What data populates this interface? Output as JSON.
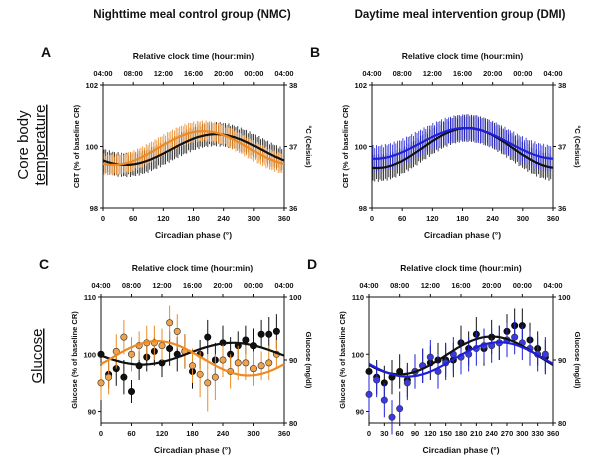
{
  "headers": {
    "left": "Nighttime meal control group (NMC)",
    "right": "Daytime meal intervention group (DMI)"
  },
  "row_labels": {
    "cbt_line1": "Core body",
    "cbt_line2": "temperature",
    "glucose": "Glucose"
  },
  "colors": {
    "nmc": "#ee8a22",
    "dmi": "#1f1fd8",
    "control": "#111111"
  },
  "chart_data": [
    {
      "id": "A",
      "type": "line",
      "letter": "A",
      "top_axis_label": "Relative clock time (hour:min)",
      "top_ticks": [
        "04:00",
        "08:00",
        "12:00",
        "16:00",
        "20:00",
        "00:00",
        "04:00"
      ],
      "xlabel": "Circadian phase (°)",
      "x_ticks": [
        0,
        60,
        120,
        180,
        240,
        300,
        360
      ],
      "xlim": [
        0,
        360
      ],
      "ylabel": "CBT (% of baseline CR)",
      "y_ticks": [
        98,
        100,
        102
      ],
      "ylim": [
        98,
        102
      ],
      "y2label": "°C (Celsius)",
      "y2_ticks": [
        36,
        37,
        38
      ],
      "y2lim": [
        36,
        38
      ],
      "fits": [
        {
          "name": "control",
          "color": "#111111",
          "mesor": 99.9,
          "amplitude": 0.5,
          "peak_deg": 225
        },
        {
          "name": "NMC",
          "color": "#ee8a22",
          "mesor": 99.95,
          "amplitude": 0.55,
          "peak_deg": 200
        }
      ],
      "bands": [
        {
          "color": "#111111",
          "mesor": 99.9,
          "amplitude": 0.5,
          "peak_deg": 225,
          "err": 0.4
        },
        {
          "color": "#ee8a22",
          "mesor": 99.95,
          "amplitude": 0.55,
          "peak_deg": 200,
          "err": 0.35
        }
      ]
    },
    {
      "id": "B",
      "type": "line",
      "letter": "B",
      "top_axis_label": "Relative clock time (hour:min)",
      "top_ticks": [
        "04:00",
        "08:00",
        "12:00",
        "16:00",
        "20:00",
        "00:00",
        "04:00"
      ],
      "xlabel": "Circadian phase (°)",
      "x_ticks": [
        0,
        60,
        120,
        180,
        240,
        300,
        360
      ],
      "xlim": [
        0,
        360
      ],
      "ylabel": "CBT (% of baseline CR)",
      "y_ticks": [
        98,
        100,
        102
      ],
      "ylim": [
        98,
        102
      ],
      "y2label": "°C (Celsius)",
      "y2_ticks": [
        36,
        37,
        38
      ],
      "y2lim": [
        36,
        38
      ],
      "fits": [
        {
          "name": "control",
          "color": "#111111",
          "mesor": 99.95,
          "amplitude": 0.65,
          "peak_deg": 190
        },
        {
          "name": "DMI",
          "color": "#1f1fd8",
          "mesor": 100.1,
          "amplitude": 0.5,
          "peak_deg": 185
        }
      ],
      "bands": [
        {
          "color": "#111111",
          "mesor": 99.95,
          "amplitude": 0.65,
          "peak_deg": 190,
          "err": 0.45
        },
        {
          "color": "#1f1fd8",
          "mesor": 100.1,
          "amplitude": 0.5,
          "peak_deg": 185,
          "err": 0.45
        }
      ]
    },
    {
      "id": "C",
      "type": "scatter",
      "letter": "C",
      "top_axis_label": "Relative clock time (hour:min)",
      "top_ticks": [
        "04:00",
        "08:00",
        "12:00",
        "16:00",
        "20:00",
        "00:00",
        "04:00"
      ],
      "xlabel": "Circadian phase (°)",
      "x_ticks": [
        0,
        60,
        120,
        180,
        240,
        300,
        360
      ],
      "xlim": [
        0,
        360
      ],
      "ylabel": "Glucose (% of baseline CR)",
      "y_ticks": [
        90,
        100,
        110
      ],
      "ylim": [
        88,
        110
      ],
      "y2label": "Glucose (mg/dl)",
      "y2_ticks": [
        80,
        90,
        100
      ],
      "y2lim": [
        80,
        100
      ],
      "fits": [
        {
          "name": "control",
          "color": "#111111",
          "mesor": 100.1,
          "amplitude": 1.9,
          "peak_deg": 260
        },
        {
          "name": "NMC",
          "color": "#ee8a22",
          "mesor": 99.3,
          "amplitude": 3.0,
          "peak_deg": 110
        }
      ],
      "series": [
        {
          "name": "control",
          "color": "#111111",
          "filled": "#111111",
          "x": [
            0,
            15,
            30,
            45,
            60,
            75,
            90,
            105,
            120,
            135,
            150,
            165,
            180,
            195,
            210,
            225,
            240,
            255,
            270,
            285,
            300,
            315,
            330,
            345
          ],
          "y": [
            100,
            96.5,
            97.5,
            96,
            93.5,
            98,
            99.5,
            100.5,
            98.5,
            101,
            100,
            100.5,
            97,
            100,
            103,
            99,
            102,
            100,
            101.5,
            102.5,
            101.5,
            103.5,
            103.5,
            104
          ],
          "err": [
            3,
            2.5,
            3,
            3,
            2,
            2.5,
            2.5,
            2.5,
            2.5,
            3,
            3,
            3,
            3,
            2.5,
            3,
            3,
            3,
            3,
            2.5,
            2.5,
            3,
            2.5,
            3,
            3
          ]
        },
        {
          "name": "NMC",
          "color": "#ee8a22",
          "filled": "#f0a24a",
          "x": [
            0,
            15,
            30,
            45,
            60,
            75,
            90,
            105,
            120,
            135,
            150,
            165,
            180,
            195,
            210,
            225,
            240,
            255,
            270,
            285,
            300,
            315,
            330,
            345
          ],
          "y": [
            95,
            96,
            100.5,
            103,
            100,
            101.5,
            102,
            102,
            101.5,
            105.5,
            104,
            100.5,
            98,
            96.5,
            95,
            96,
            99,
            97,
            98.5,
            98.5,
            97.5,
            98,
            98.5,
            100
          ],
          "err": [
            3,
            3,
            3,
            3,
            3,
            2.5,
            3,
            3,
            3,
            3,
            3,
            3,
            3,
            4,
            5,
            4,
            3,
            3,
            3,
            3,
            3,
            2.5,
            3,
            2.5
          ]
        }
      ]
    },
    {
      "id": "D",
      "type": "scatter",
      "letter": "D",
      "top_axis_label": "Relative clock time (hour:min)",
      "top_ticks": [
        "04:00",
        "08:00",
        "12:00",
        "16:00",
        "20:00",
        "00:00",
        "04:00"
      ],
      "xlabel": "Circadian phase (°)",
      "x_ticks": [
        0,
        30,
        60,
        90,
        120,
        150,
        180,
        210,
        240,
        270,
        300,
        330,
        360
      ],
      "xlim": [
        0,
        360
      ],
      "ylabel": "Glucose (% of baseline CR)",
      "y_ticks": [
        90,
        100,
        110
      ],
      "ylim": [
        88,
        110
      ],
      "y2label": "Glucose (mg/dl)",
      "y2_ticks": [
        80,
        90,
        100
      ],
      "y2lim": [
        80,
        100
      ],
      "fits": [
        {
          "name": "control",
          "color": "#111111",
          "mesor": 99.8,
          "amplitude": 3.3,
          "peak_deg": 240
        },
        {
          "name": "DMI",
          "color": "#1f1fd8",
          "mesor": 99.1,
          "amplitude": 3.0,
          "peak_deg": 255
        }
      ],
      "series": [
        {
          "name": "control",
          "color": "#111111",
          "filled": "#111111",
          "x": [
            0,
            15,
            30,
            45,
            60,
            75,
            90,
            105,
            120,
            135,
            150,
            165,
            180,
            195,
            210,
            225,
            240,
            255,
            270,
            285,
            300,
            315,
            330,
            345
          ],
          "y": [
            97,
            96,
            95,
            96,
            97,
            95.5,
            97,
            98,
            98.5,
            99,
            99,
            99,
            102,
            101,
            103.5,
            101,
            103,
            102,
            104,
            105,
            105,
            102.5,
            101,
            99.5
          ],
          "err": [
            3,
            3,
            3,
            3,
            3,
            3,
            2.5,
            3,
            3,
            3,
            3,
            3,
            3,
            3,
            3,
            3,
            3,
            3,
            3,
            3,
            3,
            3,
            3,
            3
          ]
        },
        {
          "name": "DMI",
          "color": "#1f1fd8",
          "filled": "#3a3ae0",
          "x": [
            0,
            15,
            30,
            45,
            60,
            75,
            90,
            105,
            120,
            135,
            150,
            165,
            180,
            195,
            210,
            225,
            240,
            255,
            270,
            285,
            300,
            315,
            330,
            345
          ],
          "y": [
            93,
            95.5,
            92,
            89,
            90.5,
            95,
            97,
            98,
            99.5,
            97,
            98.5,
            100,
            99.5,
            100,
            101,
            101.5,
            101.5,
            102,
            102.5,
            103,
            102,
            101,
            100,
            100
          ],
          "err": [
            3.5,
            3,
            3,
            3,
            3,
            3,
            3,
            3,
            3,
            3,
            3,
            3,
            3,
            3,
            3,
            3,
            3,
            3,
            3,
            3,
            3,
            3,
            3,
            3
          ]
        }
      ]
    }
  ]
}
